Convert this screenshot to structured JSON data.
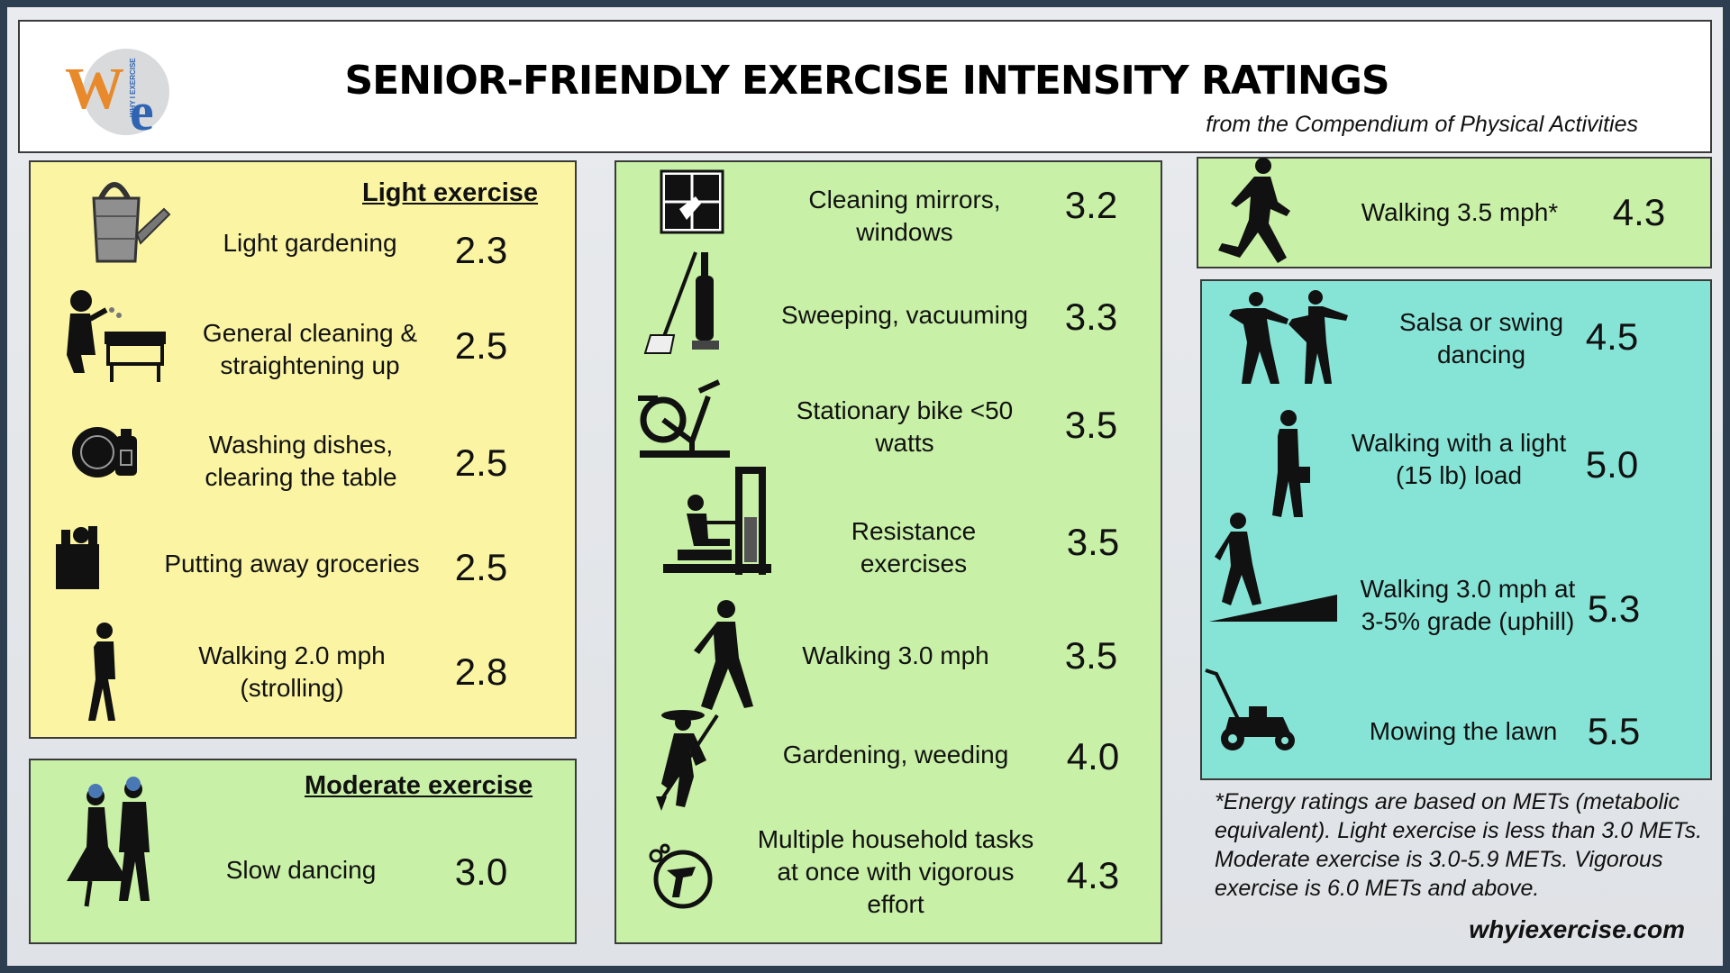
{
  "header": {
    "title": "SENIOR-FRIENDLY EXERCISE INTENSITY RATINGS",
    "subtitle": "from the Compendium of Physical Activities",
    "logo_text_w": "W",
    "logo_text_e": "e",
    "logo_small": "WHY I EXERCISE"
  },
  "light": {
    "heading": "Light exercise",
    "items": [
      {
        "label": "Light gardening",
        "value": "2.3",
        "icon": "watering-can-icon"
      },
      {
        "label": "General cleaning & straightening up",
        "value": "2.5",
        "icon": "cleaning-person-icon"
      },
      {
        "label": "Washing dishes, clearing the table",
        "value": "2.5",
        "icon": "dishes-icon"
      },
      {
        "label": "Putting away groceries",
        "value": "2.5",
        "icon": "grocery-bag-icon"
      },
      {
        "label": "Walking 2.0 mph (strolling)",
        "value": "2.8",
        "icon": "strolling-icon"
      }
    ]
  },
  "moderate": {
    "heading": "Moderate exercise",
    "items": [
      {
        "label": "Slow dancing",
        "value": "3.0",
        "icon": "dancing-couple-icon"
      },
      {
        "label": "Cleaning mirrors, windows",
        "value": "3.2",
        "icon": "window-cleaning-icon"
      },
      {
        "label": "Sweeping, vacuuming",
        "value": "3.3",
        "icon": "broom-vacuum-icon"
      },
      {
        "label": "Stationary bike <50 watts",
        "value": "3.5",
        "icon": "stationary-bike-icon"
      },
      {
        "label": "Resistance exercises",
        "value": "3.5",
        "icon": "resistance-machine-icon"
      },
      {
        "label": "Walking 3.0 mph",
        "value": "3.5",
        "icon": "walking-icon"
      },
      {
        "label": "Gardening, weeding",
        "value": "4.0",
        "icon": "gardener-icon"
      },
      {
        "label": "Multiple household tasks at once with vigorous effort",
        "value": "4.3",
        "icon": "household-tasks-icon"
      },
      {
        "label": "Walking 3.5 mph*",
        "value": "4.3",
        "icon": "brisk-walking-icon"
      }
    ]
  },
  "teal": {
    "items": [
      {
        "label": "Salsa or swing dancing",
        "value": "4.5",
        "icon": "salsa-dancers-icon"
      },
      {
        "label": "Walking with a light (15 lb) load",
        "value": "5.0",
        "icon": "walking-load-icon"
      },
      {
        "label": "Walking 3.0 mph at 3-5% grade (uphill)",
        "value": "5.3",
        "icon": "uphill-walking-icon"
      },
      {
        "label": "Mowing the lawn",
        "value": "5.5",
        "icon": "lawn-mower-icon"
      }
    ]
  },
  "footnote": "*Energy ratings are based on METs (metabolic equivalent). Light exercise is less than 3.0 METs.  Moderate exercise is 3.0-5.9 METs. Vigorous exercise is 6.0 METs and above.",
  "website": "whyiexercise.com"
}
